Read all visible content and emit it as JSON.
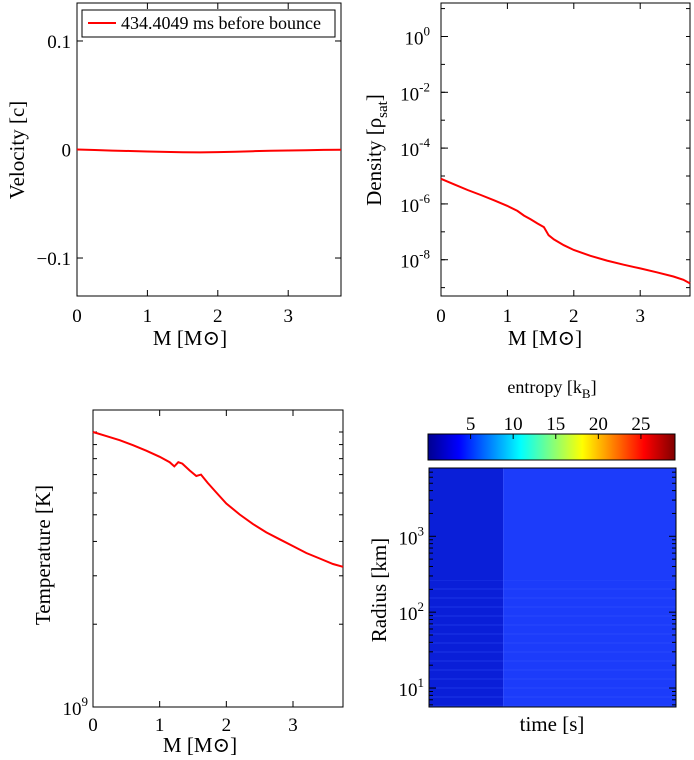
{
  "chart_data": [
    {
      "type": "line",
      "xlabel": "M [M⊙]",
      "ylabel": "Velocity [c]",
      "xlim": [
        0,
        3.75
      ],
      "ylim": [
        -0.135,
        0.135
      ],
      "x_ticks": [
        0,
        1,
        2,
        3
      ],
      "x_tick_labels": [
        "0",
        "1",
        "2",
        "3"
      ],
      "y_ticks": [
        -0.1,
        0,
        0.1
      ],
      "y_tick_labels": [
        "−0.1",
        "0",
        "0.1"
      ],
      "legend": {
        "position": "top-left",
        "entries": [
          "434.4049 ms before bounce"
        ]
      },
      "series": [
        {
          "name": "434.4049 ms before bounce",
          "color": "#ff0000",
          "x": [
            0,
            0.25,
            0.5,
            0.75,
            1.0,
            1.25,
            1.5,
            1.75,
            2.0,
            2.25,
            2.5,
            2.75,
            3.0,
            3.25,
            3.5,
            3.75
          ],
          "y": [
            0.0,
            -0.0005,
            -0.001,
            -0.0014,
            -0.0018,
            -0.0022,
            -0.0025,
            -0.0027,
            -0.0024,
            -0.002,
            -0.0016,
            -0.0012,
            -0.0009,
            -0.0006,
            -0.0004,
            -0.0003
          ]
        }
      ]
    },
    {
      "type": "line",
      "xlabel": "M [M⊙]",
      "ylabel": "Density [ρ",
      "ylabel_sub": "sat",
      "ylabel_end": "]",
      "xlim": [
        0,
        3.75
      ],
      "ylim_log10": [
        -9.3,
        1.2
      ],
      "y_scale": "log",
      "x_ticks": [
        0,
        1,
        2,
        3
      ],
      "x_tick_labels": [
        "0",
        "1",
        "2",
        "3"
      ],
      "y_tick_exponents": [
        0,
        -2,
        -4,
        -6,
        -8
      ],
      "y_tick_labels": [
        "0",
        "-2",
        "-4",
        "-6",
        "-8"
      ],
      "series": [
        {
          "color": "#ff0000",
          "x": [
            0,
            0.2,
            0.4,
            0.6,
            0.8,
            1.0,
            1.15,
            1.25,
            1.35,
            1.45,
            1.55,
            1.62,
            1.7,
            1.85,
            2.0,
            2.25,
            2.5,
            2.75,
            3.0,
            3.25,
            3.5,
            3.65,
            3.75
          ],
          "log10_y": [
            -5.1,
            -5.3,
            -5.5,
            -5.68,
            -5.87,
            -6.07,
            -6.25,
            -6.42,
            -6.55,
            -6.7,
            -6.83,
            -7.12,
            -7.27,
            -7.48,
            -7.65,
            -7.86,
            -8.03,
            -8.18,
            -8.31,
            -8.45,
            -8.6,
            -8.72,
            -8.85
          ]
        }
      ]
    },
    {
      "type": "line",
      "xlabel": "M [M⊙]",
      "ylabel": "Temperature [K]",
      "xlim": [
        0,
        3.75
      ],
      "y_scale": "log",
      "ylim_log10": [
        9.0,
        10.08
      ],
      "x_ticks": [
        0,
        1,
        2,
        3
      ],
      "x_tick_labels": [
        "0",
        "1",
        "2",
        "3"
      ],
      "y_tick_exponents": [
        9
      ],
      "y_tick_labels": [
        "9"
      ],
      "series": [
        {
          "color": "#ff0000",
          "x": [
            0,
            0.2,
            0.4,
            0.6,
            0.8,
            1.0,
            1.15,
            1.22,
            1.28,
            1.34,
            1.45,
            1.55,
            1.62,
            1.72,
            1.85,
            2.0,
            2.2,
            2.4,
            2.6,
            2.8,
            3.0,
            3.2,
            3.4,
            3.6,
            3.75
          ],
          "log10_y": [
            10.0,
            9.985,
            9.97,
            9.952,
            9.932,
            9.91,
            9.89,
            9.875,
            9.89,
            9.885,
            9.86,
            9.84,
            9.845,
            9.815,
            9.78,
            9.74,
            9.7,
            9.665,
            9.635,
            9.61,
            9.585,
            9.56,
            9.54,
            9.52,
            9.51
          ]
        }
      ]
    },
    {
      "type": "heatmap",
      "xlabel": "time [s]",
      "ylabel": "Radius [km]",
      "y_scale": "log",
      "ylim_log10": [
        0.75,
        3.9
      ],
      "y_tick_exponents": [
        1,
        2,
        3
      ],
      "y_tick_labels": [
        "1",
        "2",
        "3"
      ],
      "colorbar": {
        "label": "entropy [k",
        "label_sub": "B",
        "label_end": "]",
        "min": 0,
        "max": 29,
        "ticks": [
          5,
          10,
          15,
          20,
          25
        ],
        "tick_labels": [
          "5",
          "10",
          "15",
          "20",
          "25"
        ],
        "colormap": "jet"
      },
      "left_block_fraction": 0.3,
      "left_block_entropy": 1.2,
      "right_block_entropy": 2.8
    }
  ]
}
